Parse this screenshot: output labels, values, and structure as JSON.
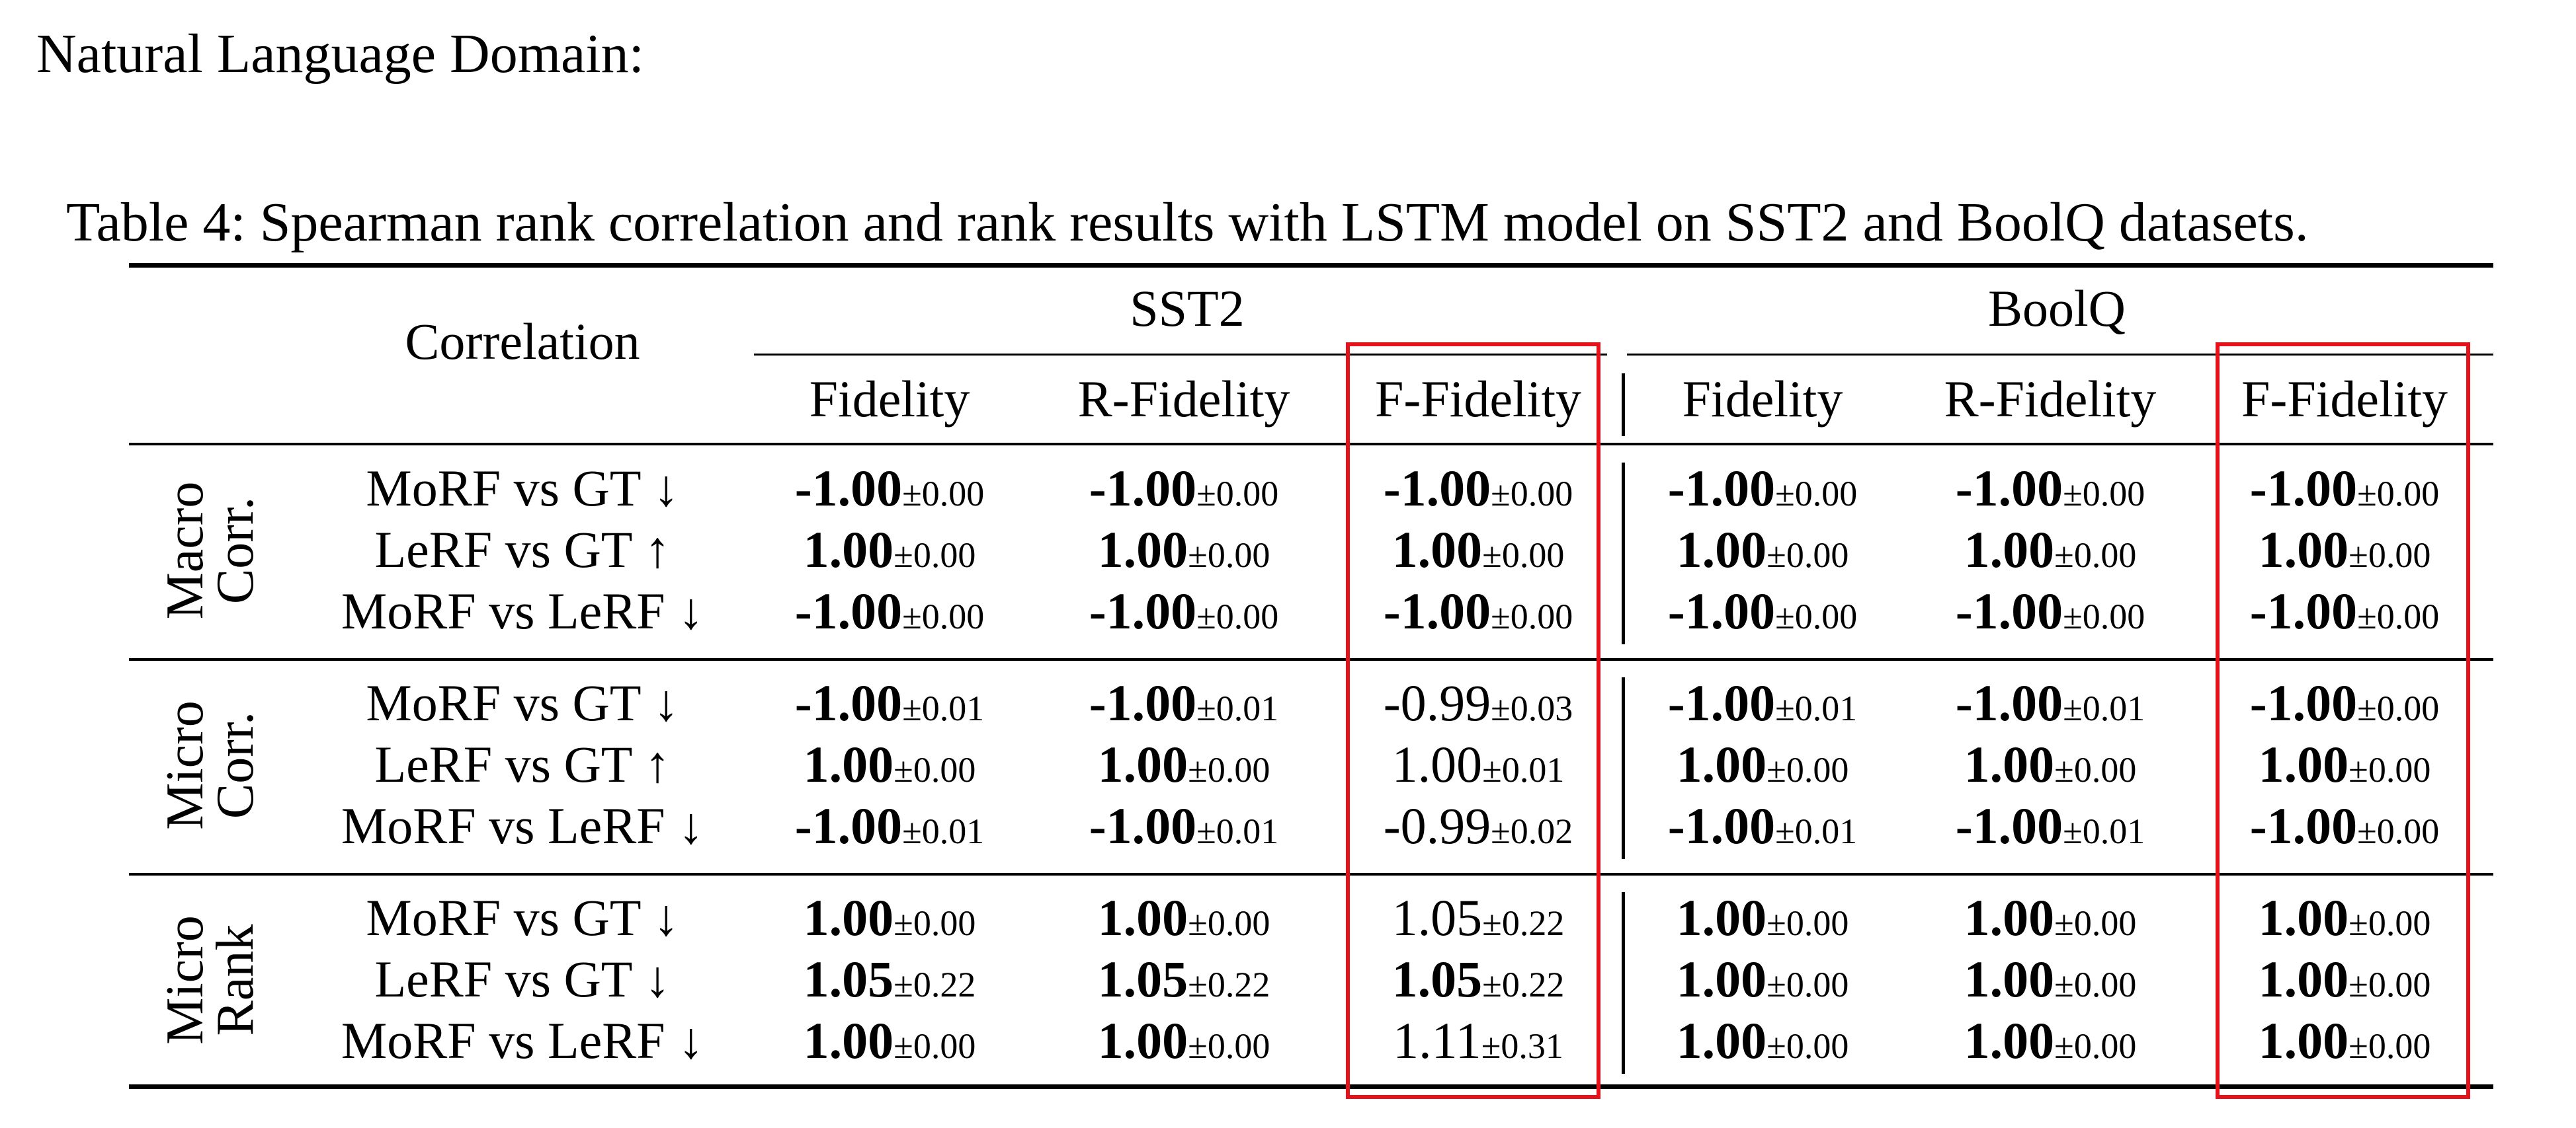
{
  "heading": "Natural Language Domain:",
  "caption": "Table 4: Spearman rank correlation and rank results with LSTM model on SST2 and BoolQ datasets.",
  "columns": {
    "corner": "Correlation",
    "datasets": [
      "SST2",
      "BoolQ"
    ],
    "metrics": [
      "Fidelity",
      "R-Fidelity",
      "F-Fidelity",
      "Fidelity",
      "R-Fidelity",
      "F-Fidelity"
    ]
  },
  "highlight_color": "#e3121b",
  "groups": [
    {
      "label_lines": [
        "Macro",
        "Corr."
      ],
      "rows": [
        {
          "label": "MoRF vs GT ↓",
          "cells": [
            {
              "v": "-1.00",
              "sd": "±0.00",
              "bold": true
            },
            {
              "v": "-1.00",
              "sd": "±0.00",
              "bold": true
            },
            {
              "v": "-1.00",
              "sd": "±0.00",
              "bold": true
            },
            {
              "v": "-1.00",
              "sd": "±0.00",
              "bold": true
            },
            {
              "v": "-1.00",
              "sd": "±0.00",
              "bold": true
            },
            {
              "v": "-1.00",
              "sd": "±0.00",
              "bold": true
            }
          ]
        },
        {
          "label": "LeRF vs GT ↑",
          "cells": [
            {
              "v": "1.00",
              "sd": "±0.00",
              "bold": true
            },
            {
              "v": "1.00",
              "sd": "±0.00",
              "bold": true
            },
            {
              "v": "1.00",
              "sd": "±0.00",
              "bold": true
            },
            {
              "v": "1.00",
              "sd": "±0.00",
              "bold": true
            },
            {
              "v": "1.00",
              "sd": "±0.00",
              "bold": true
            },
            {
              "v": "1.00",
              "sd": "±0.00",
              "bold": true
            }
          ]
        },
        {
          "label": "MoRF vs LeRF ↓",
          "cells": [
            {
              "v": "-1.00",
              "sd": "±0.00",
              "bold": true
            },
            {
              "v": "-1.00",
              "sd": "±0.00",
              "bold": true
            },
            {
              "v": "-1.00",
              "sd": "±0.00",
              "bold": true
            },
            {
              "v": "-1.00",
              "sd": "±0.00",
              "bold": true
            },
            {
              "v": "-1.00",
              "sd": "±0.00",
              "bold": true
            },
            {
              "v": "-1.00",
              "sd": "±0.00",
              "bold": true
            }
          ]
        }
      ]
    },
    {
      "label_lines": [
        "Micro",
        "Corr."
      ],
      "rows": [
        {
          "label": "MoRF vs GT ↓",
          "cells": [
            {
              "v": "-1.00",
              "sd": "±0.01",
              "bold": true
            },
            {
              "v": "-1.00",
              "sd": "±0.01",
              "bold": true
            },
            {
              "v": "-0.99",
              "sd": "±0.03",
              "bold": false
            },
            {
              "v": "-1.00",
              "sd": "±0.01",
              "bold": true
            },
            {
              "v": "-1.00",
              "sd": "±0.01",
              "bold": true
            },
            {
              "v": "-1.00",
              "sd": "±0.00",
              "bold": true
            }
          ]
        },
        {
          "label": "LeRF vs GT ↑",
          "cells": [
            {
              "v": "1.00",
              "sd": "±0.00",
              "bold": true
            },
            {
              "v": "1.00",
              "sd": "±0.00",
              "bold": true
            },
            {
              "v": "1.00",
              "sd": "±0.01",
              "bold": false
            },
            {
              "v": "1.00",
              "sd": "±0.00",
              "bold": true
            },
            {
              "v": "1.00",
              "sd": "±0.00",
              "bold": true
            },
            {
              "v": "1.00",
              "sd": "±0.00",
              "bold": true
            }
          ]
        },
        {
          "label": "MoRF vs LeRF ↓",
          "cells": [
            {
              "v": "-1.00",
              "sd": "±0.01",
              "bold": true
            },
            {
              "v": "-1.00",
              "sd": "±0.01",
              "bold": true
            },
            {
              "v": "-0.99",
              "sd": "±0.02",
              "bold": false
            },
            {
              "v": "-1.00",
              "sd": "±0.01",
              "bold": true
            },
            {
              "v": "-1.00",
              "sd": "±0.01",
              "bold": true
            },
            {
              "v": "-1.00",
              "sd": "±0.00",
              "bold": true
            }
          ]
        }
      ]
    },
    {
      "label_lines": [
        "Micro",
        "Rank"
      ],
      "rows": [
        {
          "label": "MoRF vs GT ↓",
          "cells": [
            {
              "v": "1.00",
              "sd": "±0.00",
              "bold": true
            },
            {
              "v": "1.00",
              "sd": "±0.00",
              "bold": true
            },
            {
              "v": "1.05",
              "sd": "±0.22",
              "bold": false
            },
            {
              "v": "1.00",
              "sd": "±0.00",
              "bold": true
            },
            {
              "v": "1.00",
              "sd": "±0.00",
              "bold": true
            },
            {
              "v": "1.00",
              "sd": "±0.00",
              "bold": true
            }
          ]
        },
        {
          "label": "LeRF vs GT ↓",
          "cells": [
            {
              "v": "1.05",
              "sd": "±0.22",
              "bold": true
            },
            {
              "v": "1.05",
              "sd": "±0.22",
              "bold": true
            },
            {
              "v": "1.05",
              "sd": "±0.22",
              "bold": true
            },
            {
              "v": "1.00",
              "sd": "±0.00",
              "bold": true
            },
            {
              "v": "1.00",
              "sd": "±0.00",
              "bold": true
            },
            {
              "v": "1.00",
              "sd": "±0.00",
              "bold": true
            }
          ]
        },
        {
          "label": "MoRF vs LeRF ↓",
          "cells": [
            {
              "v": "1.00",
              "sd": "±0.00",
              "bold": true
            },
            {
              "v": "1.00",
              "sd": "±0.00",
              "bold": true
            },
            {
              "v": "1.11",
              "sd": "±0.31",
              "bold": false
            },
            {
              "v": "1.00",
              "sd": "±0.00",
              "bold": true
            },
            {
              "v": "1.00",
              "sd": "±0.00",
              "bold": true
            },
            {
              "v": "1.00",
              "sd": "±0.00",
              "bold": true
            }
          ]
        }
      ]
    }
  ]
}
